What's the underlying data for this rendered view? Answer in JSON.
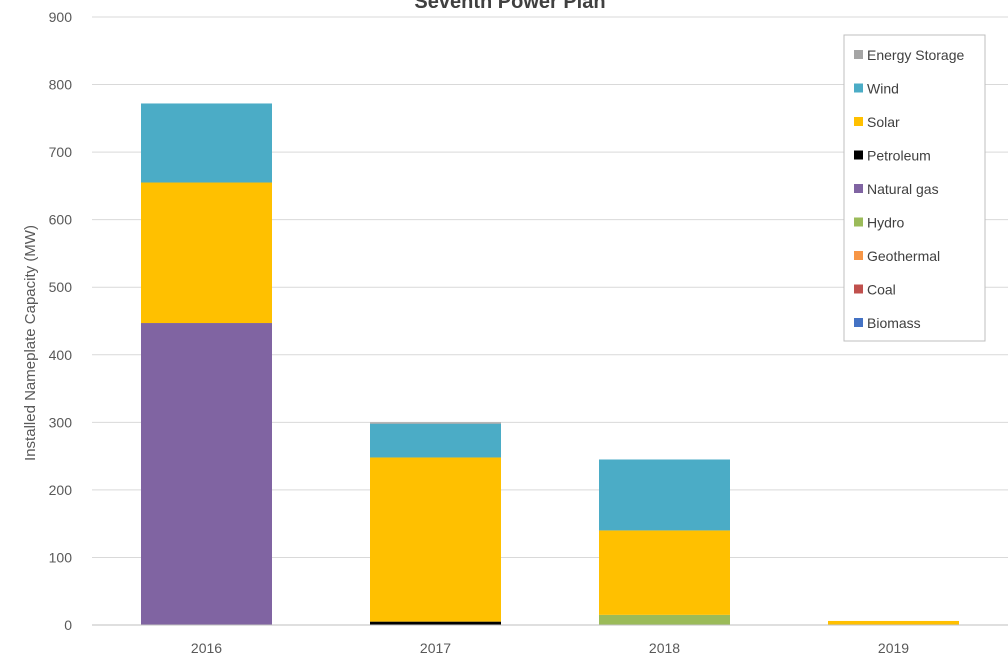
{
  "chart_data": {
    "type": "bar",
    "stacked": true,
    "title": "Seventh Power Plan",
    "xlabel": "",
    "ylabel": "Installed Nameplate Capacity (MW)",
    "ylim": [
      0,
      900
    ],
    "yticks": [
      0,
      100,
      200,
      300,
      400,
      500,
      600,
      700,
      800,
      900
    ],
    "grid": true,
    "legend_position": "top-right",
    "categories": [
      "2016",
      "2017",
      "2018",
      "2019"
    ],
    "series": [
      {
        "name": "Biomass",
        "color": "#4472C4",
        "values": [
          0,
          0,
          0,
          0
        ]
      },
      {
        "name": "Coal",
        "color": "#C0504D",
        "values": [
          0,
          0,
          0,
          0
        ]
      },
      {
        "name": "Geothermal",
        "color": "#F79646",
        "values": [
          0,
          0,
          0,
          0
        ]
      },
      {
        "name": "Hydro",
        "color": "#9BBB59",
        "values": [
          0,
          0,
          15,
          0
        ]
      },
      {
        "name": "Natural gas",
        "color": "#8064A2",
        "values": [
          447,
          0,
          0,
          0
        ]
      },
      {
        "name": "Petroleum",
        "color": "#000000",
        "values": [
          0,
          5,
          0,
          0
        ]
      },
      {
        "name": "Solar",
        "color": "#FFC000",
        "values": [
          208,
          243,
          125,
          6
        ]
      },
      {
        "name": "Wind",
        "color": "#4BACC6",
        "values": [
          117,
          50,
          105,
          0
        ]
      },
      {
        "name": "Energy Storage",
        "color": "#A5A5A5",
        "values": [
          0,
          2,
          0,
          0
        ]
      }
    ]
  }
}
